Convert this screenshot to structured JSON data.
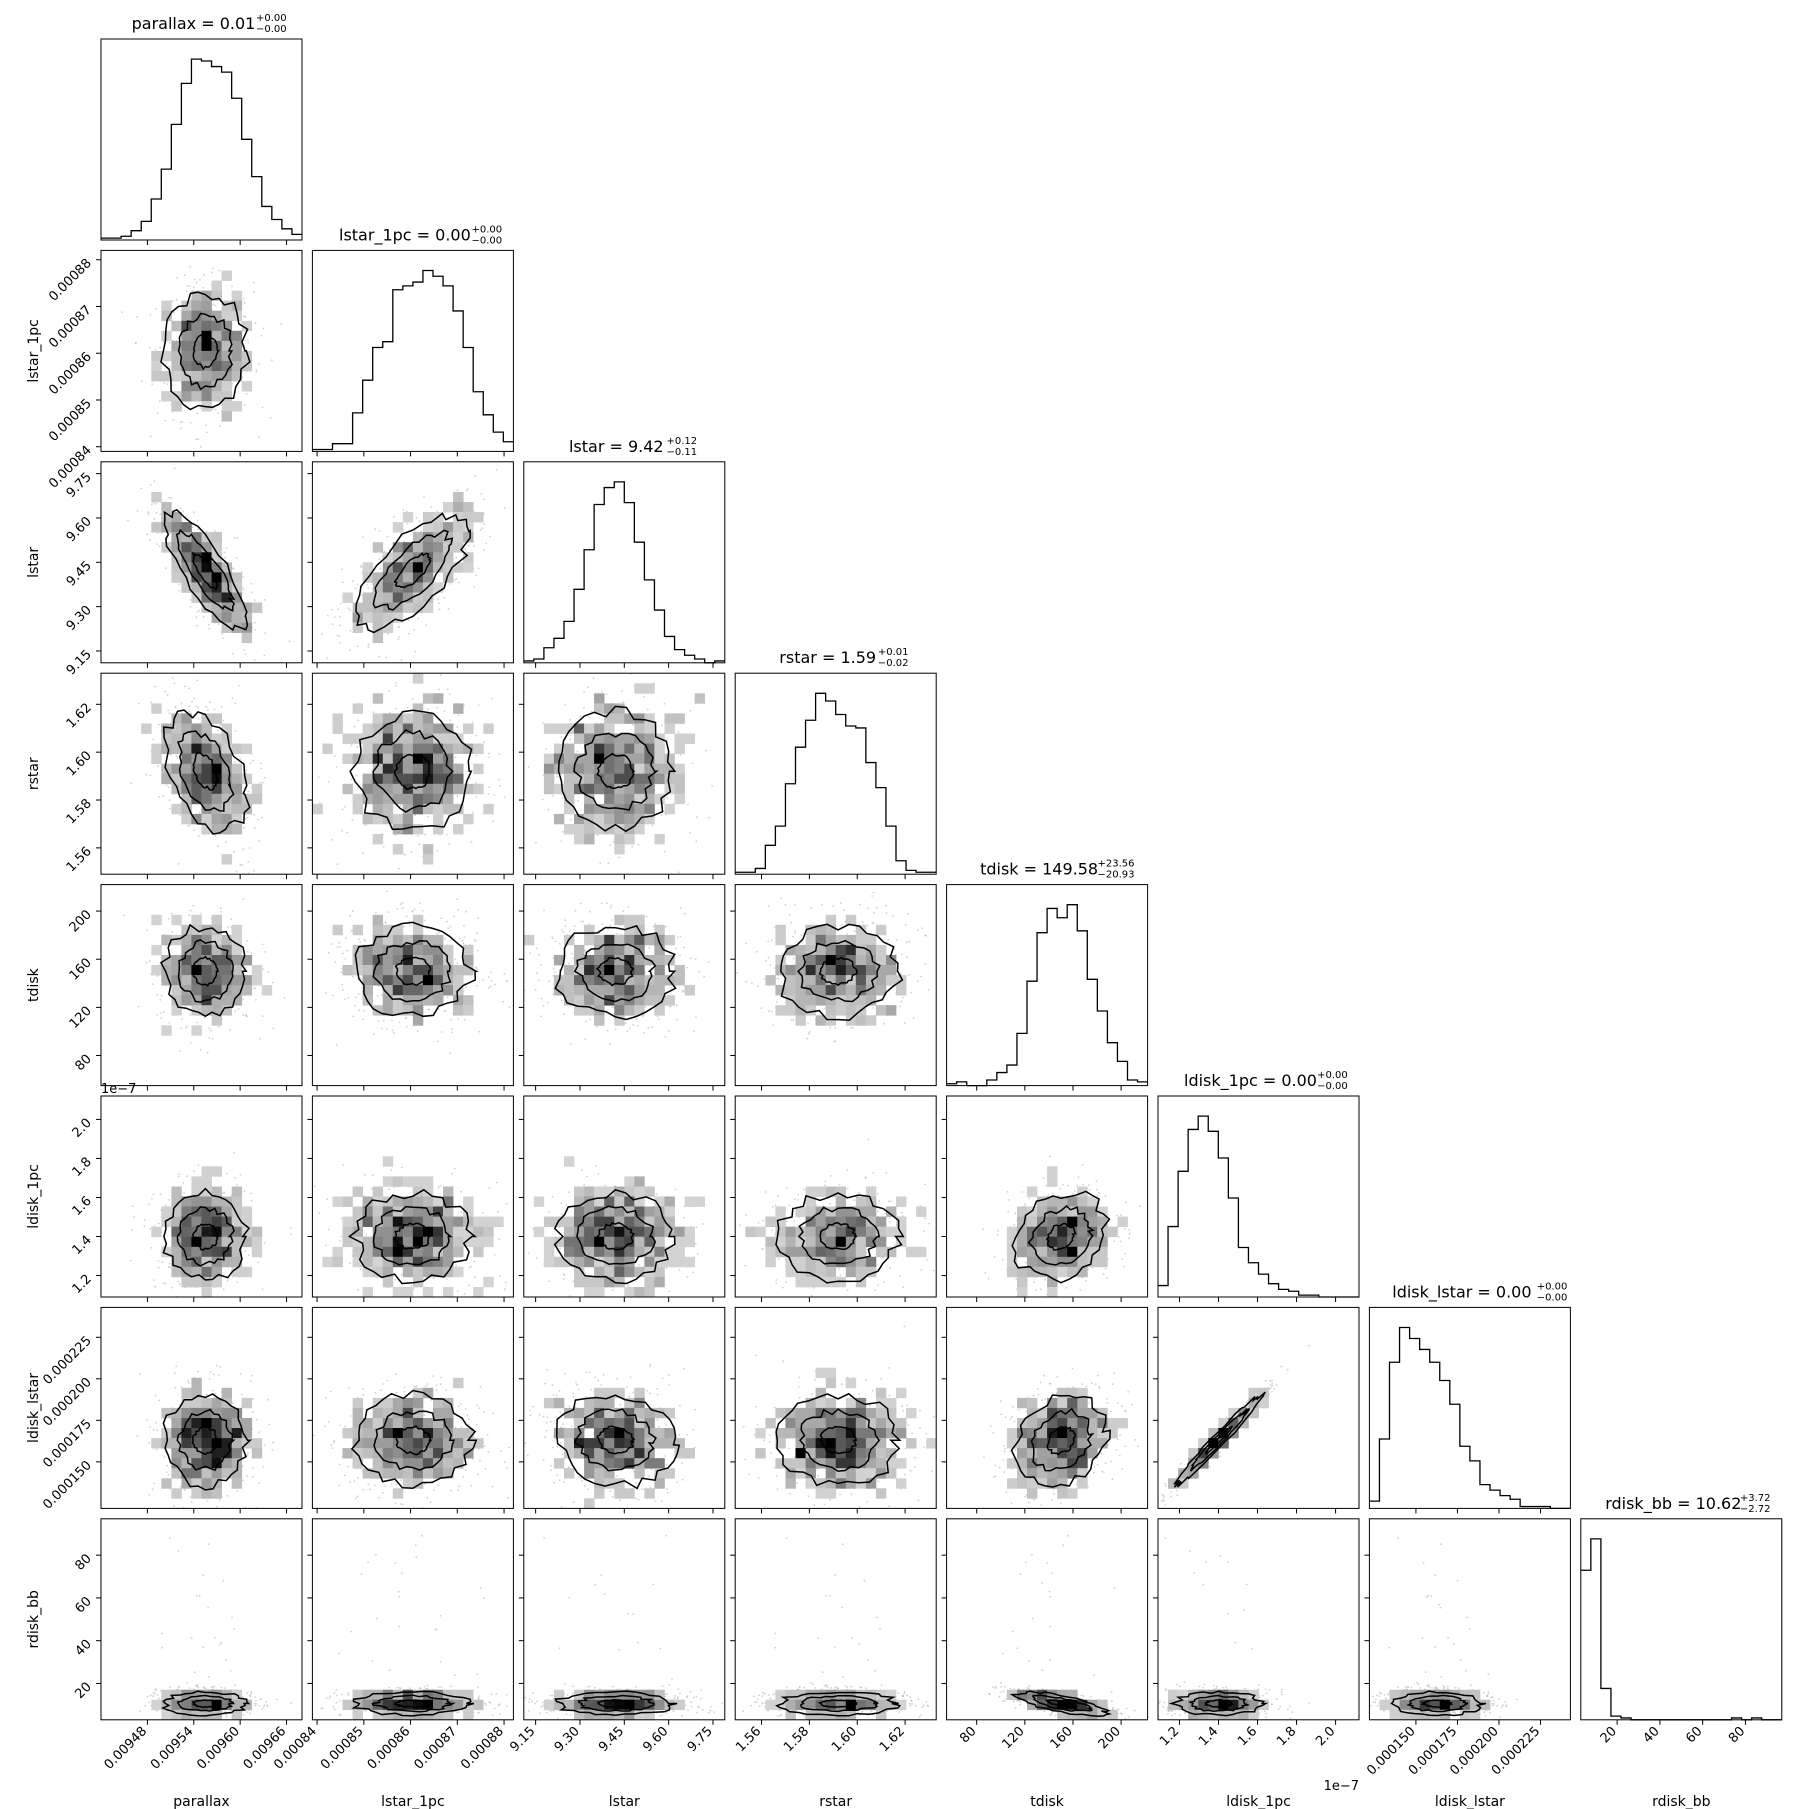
{
  "chart_data": {
    "type": "corner",
    "parameters": [
      "parallax",
      "lstar_1pc",
      "lstar",
      "rstar",
      "tdisk",
      "ldisk_1pc",
      "ldisk_lstar",
      "rdisk_bb"
    ],
    "titles": [
      {
        "param": "parallax",
        "median": "0.01",
        "plus": "+0.00",
        "minus": "−0.00"
      },
      {
        "param": "lstar_1pc",
        "median": "0.00",
        "plus": "+0.00",
        "minus": "−0.00"
      },
      {
        "param": "lstar",
        "median": "9.42",
        "plus": "+0.12",
        "minus": "−0.11"
      },
      {
        "param": "rstar",
        "median": "1.59",
        "plus": "+0.01",
        "minus": "−0.02"
      },
      {
        "param": "tdisk",
        "median": "149.58",
        "plus": "+23.56",
        "minus": "−20.93"
      },
      {
        "param": "ldisk_1pc",
        "median": "0.00",
        "plus": "+0.00",
        "minus": "−0.00"
      },
      {
        "param": "ldisk_lstar",
        "median": "0.00",
        "plus": "+0.00",
        "minus": "−0.00"
      },
      {
        "param": "rdisk_bb",
        "median": "10.62",
        "plus": "+3.72",
        "minus": "−2.72"
      }
    ],
    "axes": [
      {
        "param": "parallax",
        "range": [
          0.00942,
          0.00968
        ],
        "ticks": [
          "0.00948",
          "0.00954",
          "0.00960",
          "0.00966"
        ],
        "mean": 0.009555,
        "sd": 3.1e-05
      },
      {
        "param": "lstar_1pc",
        "range": [
          0.000839,
          0.000882
        ],
        "ticks": [
          "0.00084",
          "0.00085",
          "0.00086",
          "0.00087",
          "0.00088"
        ],
        "mean": 0.0008605,
        "sd": 7.2e-06
      },
      {
        "param": "lstar",
        "range": [
          9.11,
          9.79
        ],
        "ticks": [
          "9.15",
          "9.30",
          "9.45",
          "9.60",
          "9.75"
        ],
        "mean": 9.42,
        "sd": 0.115
      },
      {
        "param": "rstar",
        "range": [
          1.549,
          1.633
        ],
        "ticks": [
          "1.56",
          "1.58",
          "1.60",
          "1.62"
        ],
        "mean": 1.592,
        "sd": 0.0145
      },
      {
        "param": "tdisk",
        "range": [
          55,
          222
        ],
        "ticks": [
          "80",
          "120",
          "160",
          "200"
        ],
        "mean": 150,
        "sd": 22
      },
      {
        "param": "ldisk_1pc",
        "range": [
          1.09,
          2.12
        ],
        "ticks": [
          "1.2",
          "1.4",
          "1.6",
          "1.8",
          "2.0"
        ],
        "mean": 1.4,
        "sd": 0.13,
        "offset_label": "1e−7"
      },
      {
        "param": "ldisk_lstar",
        "range": [
          0.000122,
          0.000243
        ],
        "ticks": [
          "0.000150",
          "0.000175",
          "0.000200",
          "0.000225"
        ],
        "mean": 0.000163,
        "sd": 1.6e-05
      },
      {
        "param": "rdisk_bb",
        "range": [
          3,
          97
        ],
        "ticks": [
          "20",
          "40",
          "60",
          "80"
        ],
        "mean": 10.6,
        "sd": 3.2
      }
    ],
    "histograms": [
      {
        "param": "parallax",
        "counts": [
          1,
          1,
          2,
          5,
          10,
          22,
          38,
          62,
          84,
          97,
          96,
          93,
          90,
          76,
          54,
          34,
          18,
          11,
          6,
          3
        ]
      },
      {
        "param": "lstar_1pc",
        "counts": [
          1,
          1,
          4,
          4,
          20,
          37,
          54,
          57,
          84,
          86,
          88,
          94,
          91,
          86,
          73,
          54,
          31,
          19,
          10,
          5
        ]
      },
      {
        "param": "lstar",
        "counts": [
          1,
          2,
          8,
          13,
          22,
          39,
          60,
          84,
          93,
          96,
          85,
          64,
          44,
          28,
          14,
          7,
          4,
          2,
          0,
          1
        ]
      },
      {
        "param": "rstar",
        "counts": [
          1,
          1,
          3,
          15,
          25,
          47,
          66,
          80,
          94,
          90,
          83,
          77,
          76,
          58,
          45,
          25,
          7,
          2,
          1,
          1
        ]
      },
      {
        "param": "tdisk",
        "counts": [
          1,
          2,
          0,
          0,
          3,
          7,
          11,
          28,
          56,
          82,
          95,
          90,
          97,
          83,
          57,
          40,
          23,
          13,
          3,
          2
        ]
      },
      {
        "param": "ldisk_1pc",
        "counts": [
          6,
          37,
          66,
          88,
          95,
          87,
          73,
          52,
          26,
          18,
          12,
          7,
          4,
          3,
          1,
          1,
          0,
          0,
          0,
          0
        ]
      },
      {
        "param": "ldisk_lstar",
        "counts": [
          4,
          38,
          80,
          99,
          93,
          87,
          80,
          70,
          57,
          34,
          26,
          13,
          10,
          7,
          5,
          1,
          1,
          1,
          0,
          0
        ]
      },
      {
        "param": "rdisk_bb",
        "counts": [
          81,
          98,
          17,
          2,
          1,
          0,
          0,
          0,
          0,
          0,
          0,
          0,
          0,
          0,
          0,
          1,
          0,
          1,
          0,
          0
        ]
      }
    ],
    "correlations": {
      "parallax|lstar": -0.8,
      "lstar_1pc|lstar": 0.7,
      "parallax|rstar": -0.4,
      "tdisk|ldisk_1pc": 0.2,
      "ldisk_1pc|ldisk_lstar": 0.98,
      "tdisk|ldisk_lstar": 0.2,
      "tdisk|rdisk_bb": -0.7,
      "lstar|ldisk_lstar": -0.1
    },
    "grid": false,
    "contour_levels": 3,
    "colors": {
      "line": "#000000",
      "points": "#b0b0b0",
      "shade_dark": "#000000",
      "shade_light": "#e0e0e0"
    }
  }
}
